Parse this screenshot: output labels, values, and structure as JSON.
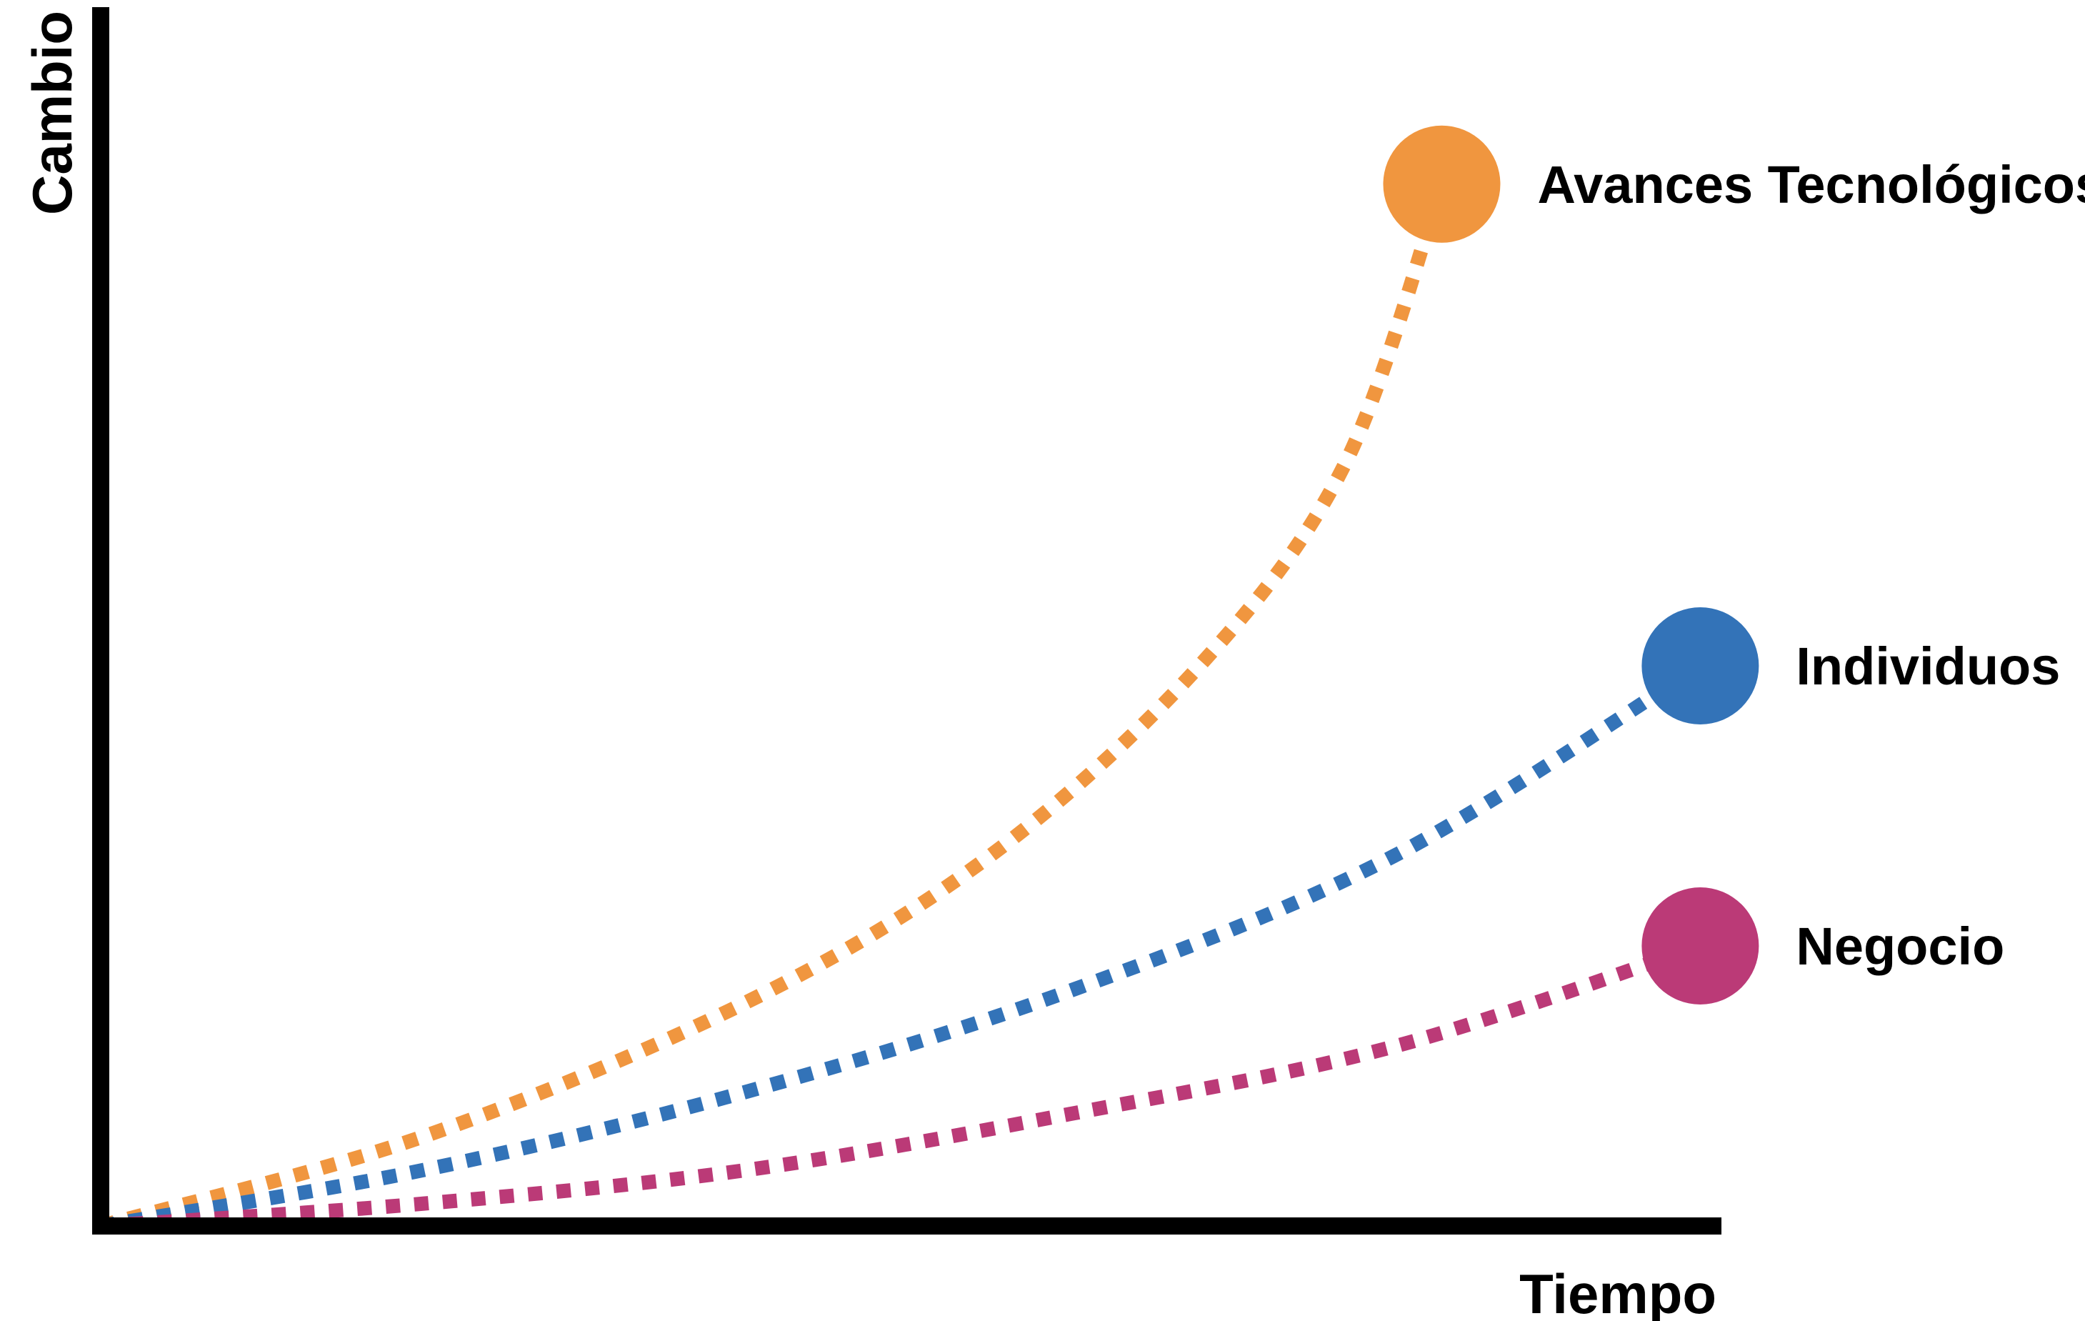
{
  "chart_data": {
    "type": "line",
    "xlabel": "Tiempo",
    "ylabel": "Cambio",
    "xlim": [
      0,
      1
    ],
    "ylim": [
      0,
      1
    ],
    "grid": false,
    "legend": "inline-right",
    "series": [
      {
        "name": "Avances Tecnológicos",
        "color": "#F0963F",
        "end": {
          "x": 0.83,
          "y": 0.93
        },
        "points": [
          {
            "x": 0.0,
            "y": 0.0
          },
          {
            "x": 0.2,
            "y": 0.08
          },
          {
            "x": 0.4,
            "y": 0.2
          },
          {
            "x": 0.55,
            "y": 0.33
          },
          {
            "x": 0.68,
            "y": 0.5
          },
          {
            "x": 0.77,
            "y": 0.68
          },
          {
            "x": 0.83,
            "y": 0.93
          }
        ]
      },
      {
        "name": "Individuos",
        "color": "#3373B8",
        "end": {
          "x": 0.99,
          "y": 0.5
        },
        "points": [
          {
            "x": 0.0,
            "y": 0.0
          },
          {
            "x": 0.2,
            "y": 0.05
          },
          {
            "x": 0.4,
            "y": 0.12
          },
          {
            "x": 0.6,
            "y": 0.21
          },
          {
            "x": 0.8,
            "y": 0.33
          },
          {
            "x": 0.99,
            "y": 0.5
          }
        ]
      },
      {
        "name": "Negocio",
        "color": "#BB3A77",
        "end": {
          "x": 0.99,
          "y": 0.25
        },
        "points": [
          {
            "x": 0.0,
            "y": 0.0
          },
          {
            "x": 0.2,
            "y": 0.02
          },
          {
            "x": 0.4,
            "y": 0.05
          },
          {
            "x": 0.6,
            "y": 0.1
          },
          {
            "x": 0.8,
            "y": 0.16
          },
          {
            "x": 0.99,
            "y": 0.25
          }
        ]
      }
    ]
  }
}
